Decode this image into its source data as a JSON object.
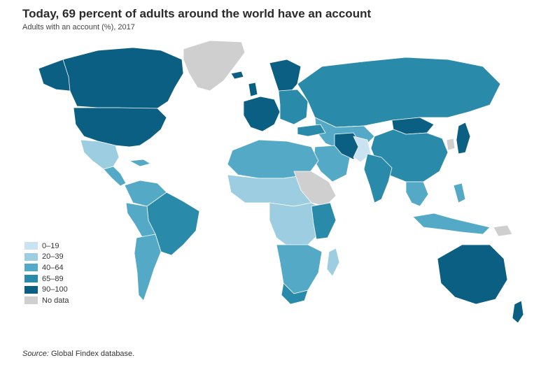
{
  "title": "Today, 69 percent of adults around the world have an account",
  "subtitle": "Adults with an account (%), 2017",
  "source": {
    "label": "Source:",
    "text": " Global Findex database."
  },
  "legend": [
    {
      "label": "0–19",
      "color": "#c9e3f2"
    },
    {
      "label": "20–39",
      "color": "#9ccde0"
    },
    {
      "label": "40–64",
      "color": "#54a9c6"
    },
    {
      "label": "65–89",
      "color": "#2a8aa9"
    },
    {
      "label": "90–100",
      "color": "#0a5f82"
    },
    {
      "label": "No data",
      "color": "#cfcfcf"
    }
  ]
}
